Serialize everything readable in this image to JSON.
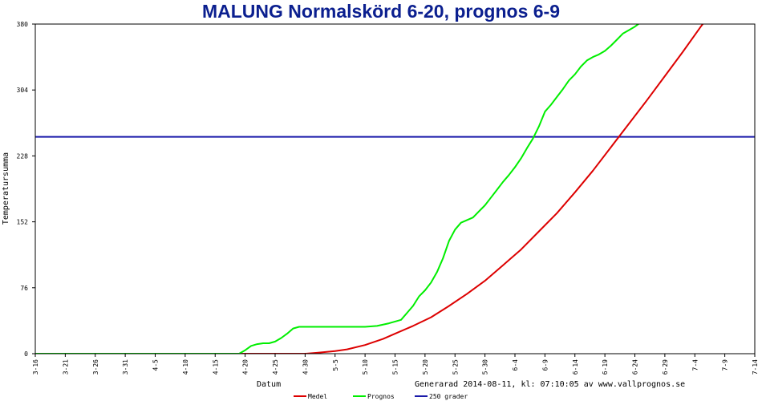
{
  "chart_data": {
    "type": "line",
    "title": "MALUNG Normalskörd 6-20, prognos 6-9",
    "xlabel": "Datum",
    "ylabel": "Temperatursumma",
    "ylim": [
      0,
      380
    ],
    "y_ticks": [
      0,
      76,
      152,
      228,
      304,
      380
    ],
    "x_ticks": [
      "3-16",
      "3-21",
      "3-26",
      "3-31",
      "4-5",
      "4-10",
      "4-15",
      "4-20",
      "4-25",
      "4-30",
      "5-5",
      "5-10",
      "5-15",
      "5-20",
      "5-25",
      "5-30",
      "6-4",
      "6-9",
      "6-14",
      "6-19",
      "6-24",
      "6-29",
      "7-4",
      "7-9",
      "7-14"
    ],
    "x_range_days": [
      0,
      120
    ],
    "grid": false,
    "legend_position": "bottom",
    "footer": "Generarad 2014-08-11, kl: 07:10:05 av www.vallprognos.se",
    "series": [
      {
        "name": "Medel",
        "color": "#dd0000",
        "points": [
          [
            0,
            0
          ],
          [
            35,
            0
          ],
          [
            45,
            0
          ],
          [
            47,
            1
          ],
          [
            50,
            3
          ],
          [
            52,
            5
          ],
          [
            55,
            10
          ],
          [
            58,
            17
          ],
          [
            60,
            23
          ],
          [
            63,
            32
          ],
          [
            66,
            42
          ],
          [
            69,
            55
          ],
          [
            72,
            69
          ],
          [
            75,
            84
          ],
          [
            78,
            102
          ],
          [
            81,
            120
          ],
          [
            84,
            141
          ],
          [
            87,
            162
          ],
          [
            90,
            186
          ],
          [
            93,
            211
          ],
          [
            96,
            238
          ],
          [
            99,
            265
          ],
          [
            102,
            292
          ],
          [
            105,
            320
          ],
          [
            108,
            348
          ],
          [
            111,
            377
          ],
          [
            113,
            395
          ]
        ]
      },
      {
        "name": "Prognos",
        "color": "#00ee00",
        "points": [
          [
            0,
            0
          ],
          [
            34,
            0
          ],
          [
            35,
            4
          ],
          [
            36,
            9
          ],
          [
            37,
            11
          ],
          [
            38,
            12
          ],
          [
            39,
            12
          ],
          [
            40,
            14
          ],
          [
            41,
            18
          ],
          [
            42,
            23
          ],
          [
            43,
            29
          ],
          [
            44,
            31
          ],
          [
            50,
            31
          ],
          [
            55,
            31
          ],
          [
            57,
            32
          ],
          [
            59,
            35
          ],
          [
            61,
            39
          ],
          [
            63,
            55
          ],
          [
            64,
            66
          ],
          [
            65,
            73
          ],
          [
            66,
            82
          ],
          [
            67,
            94
          ],
          [
            68,
            110
          ],
          [
            69,
            130
          ],
          [
            70,
            143
          ],
          [
            71,
            151
          ],
          [
            72,
            154
          ],
          [
            73,
            157
          ],
          [
            74,
            164
          ],
          [
            75,
            171
          ],
          [
            76,
            180
          ],
          [
            77,
            189
          ],
          [
            78,
            198
          ],
          [
            79,
            206
          ],
          [
            80,
            215
          ],
          [
            81,
            225
          ],
          [
            82,
            237
          ],
          [
            83,
            248
          ],
          [
            84,
            262
          ],
          [
            85,
            279
          ],
          [
            86,
            287
          ],
          [
            87,
            296
          ],
          [
            88,
            305
          ],
          [
            89,
            315
          ],
          [
            90,
            322
          ],
          [
            91,
            331
          ],
          [
            92,
            338
          ],
          [
            93,
            342
          ],
          [
            94,
            345
          ],
          [
            95,
            349
          ],
          [
            96,
            355
          ],
          [
            97,
            362
          ],
          [
            98,
            369
          ],
          [
            99,
            373
          ],
          [
            100,
            377
          ],
          [
            101,
            382
          ],
          [
            102,
            386
          ],
          [
            103,
            393
          ],
          [
            104,
            400
          ]
        ]
      },
      {
        "name": "250 grader",
        "color": "#1a1aaa",
        "points": [
          [
            0,
            250
          ],
          [
            120,
            250
          ]
        ]
      }
    ]
  }
}
